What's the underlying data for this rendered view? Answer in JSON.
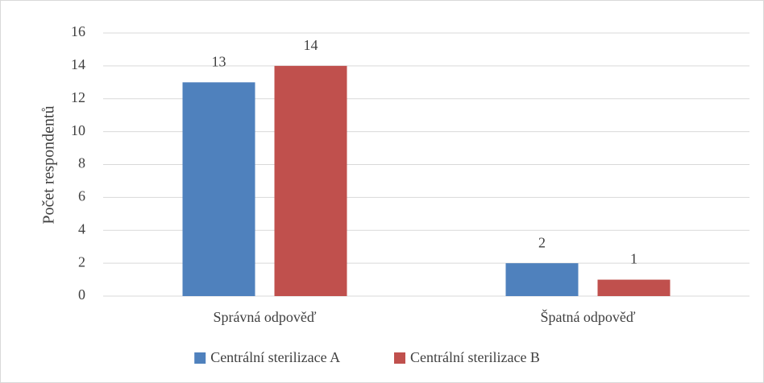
{
  "chart_data": {
    "type": "bar",
    "y_label": "Počet respondentů",
    "categories": [
      "Správná odpověď",
      "Špatná odpověď"
    ],
    "series": [
      {
        "name": "Centrální sterilizace A",
        "color": "#4f81bd",
        "values": [
          13,
          2
        ]
      },
      {
        "name": "Centrální sterilizace B",
        "color": "#c0504d",
        "values": [
          14,
          1
        ]
      }
    ],
    "ylim": [
      0,
      16
    ],
    "yticks": [
      0,
      2,
      4,
      6,
      8,
      10,
      12,
      14,
      16
    ],
    "grid": true,
    "legend": "bottom"
  }
}
